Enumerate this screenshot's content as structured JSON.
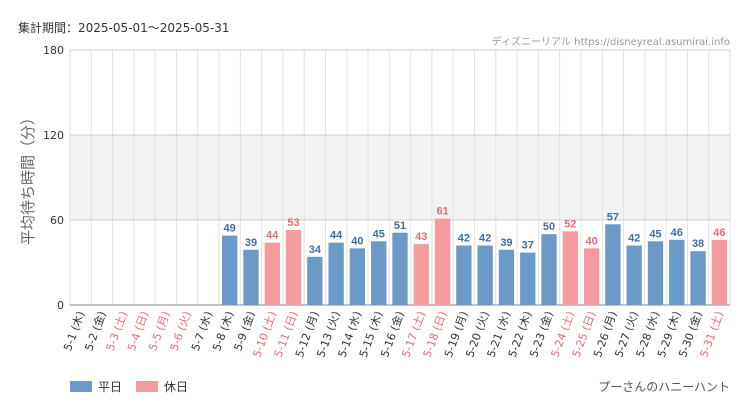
{
  "header": {
    "period_label": "集計期間：2025-05-01～2025-05-31",
    "credit": "ディズニーリアル https://disneyreal.asumirai.info"
  },
  "footer": {
    "attraction": "プーさんのハニーハント"
  },
  "colors": {
    "weekday": "#6b9ac9",
    "holiday": "#f59a9e",
    "weekday_label": "#3d6fa8",
    "holiday_label": "#e86c72",
    "band": "#f2f2f2",
    "grid": "#e2e2e2"
  },
  "chart_data": {
    "type": "bar",
    "ylabel": "平均待ち時間（分）",
    "xlabel": "",
    "ylim": [
      0,
      180
    ],
    "yticks": [
      0,
      60,
      120,
      180
    ],
    "grid": true,
    "legend_position": "bottom-left",
    "legend": [
      {
        "key": "weekday",
        "label": "平日"
      },
      {
        "key": "holiday",
        "label": "休日"
      }
    ],
    "categories": [
      "5-1 (木)",
      "5-2 (金)",
      "5-3 (土)",
      "5-4 (日)",
      "5-5 (月)",
      "5-6 (火)",
      "5-7 (水)",
      "5-8 (木)",
      "5-9 (金)",
      "5-10 (土)",
      "5-11 (日)",
      "5-12 (月)",
      "5-13 (火)",
      "5-14 (水)",
      "5-15 (木)",
      "5-16 (金)",
      "5-17 (土)",
      "5-18 (日)",
      "5-19 (月)",
      "5-20 (火)",
      "5-21 (水)",
      "5-22 (木)",
      "5-23 (金)",
      "5-24 (土)",
      "5-25 (日)",
      "5-26 (月)",
      "5-27 (火)",
      "5-28 (水)",
      "5-29 (木)",
      "5-30 (金)",
      "5-31 (土)"
    ],
    "day_type": [
      "weekday",
      "weekday",
      "holiday",
      "holiday",
      "holiday",
      "holiday",
      "weekday",
      "weekday",
      "weekday",
      "holiday",
      "holiday",
      "weekday",
      "weekday",
      "weekday",
      "weekday",
      "weekday",
      "holiday",
      "holiday",
      "weekday",
      "weekday",
      "weekday",
      "weekday",
      "weekday",
      "holiday",
      "holiday",
      "weekday",
      "weekday",
      "weekday",
      "weekday",
      "weekday",
      "holiday"
    ],
    "values": [
      null,
      null,
      null,
      null,
      null,
      null,
      null,
      49,
      39,
      44,
      53,
      34,
      44,
      40,
      45,
      51,
      43,
      61,
      42,
      42,
      39,
      37,
      50,
      52,
      40,
      57,
      42,
      45,
      46,
      38,
      46
    ]
  }
}
